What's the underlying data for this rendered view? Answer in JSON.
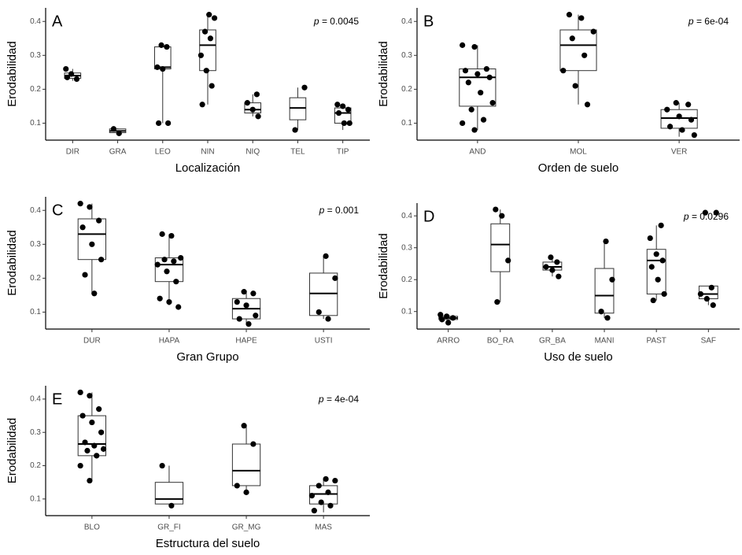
{
  "chart_data": [
    {
      "type": "box",
      "label": "A",
      "y_label": "Erodabilidad",
      "x_label": "Localización",
      "p_symbol": "p",
      "p_text": "= 0.0045",
      "categories": [
        "DIR",
        "GRA",
        "LEO",
        "NIN",
        "NIQ",
        "TEL",
        "TIP"
      ],
      "boxes": [
        {
          "min": 0.225,
          "q1": 0.232,
          "median": 0.24,
          "q3": 0.248,
          "max": 0.26
        },
        {
          "min": 0.07,
          "q1": 0.072,
          "median": 0.077,
          "q3": 0.083,
          "max": 0.085
        },
        {
          "min": 0.1,
          "q1": 0.26,
          "median": 0.265,
          "q3": 0.325,
          "max": 0.33
        },
        {
          "min": 0.155,
          "q1": 0.255,
          "median": 0.33,
          "q3": 0.375,
          "max": 0.42
        },
        {
          "min": 0.12,
          "q1": 0.13,
          "median": 0.14,
          "q3": 0.16,
          "max": 0.185
        },
        {
          "min": 0.08,
          "q1": 0.11,
          "median": 0.145,
          "q3": 0.175,
          "max": 0.205
        },
        {
          "min": 0.08,
          "q1": 0.1,
          "median": 0.13,
          "q3": 0.145,
          "max": 0.155
        }
      ],
      "points": [
        [
          0.26,
          0.245,
          0.23,
          0.235
        ],
        [
          0.083,
          0.07
        ],
        [
          0.33,
          0.325,
          0.265,
          0.26,
          0.1,
          0.1
        ],
        [
          0.42,
          0.41,
          0.37,
          0.35,
          0.3,
          0.255,
          0.21,
          0.155
        ],
        [
          0.185,
          0.16,
          0.14,
          0.12
        ],
        [
          0.205,
          0.08
        ],
        [
          0.155,
          0.15,
          0.14,
          0.13,
          0.1,
          0.1
        ]
      ],
      "ylim": [
        0.05,
        0.44
      ],
      "yticks": [
        0.1,
        0.2,
        0.3,
        0.4
      ]
    },
    {
      "type": "box",
      "label": "B",
      "y_label": "Erodabilidad",
      "x_label": "Orden de suelo",
      "p_symbol": "p",
      "p_text": "= 6e-04",
      "categories": [
        "AND",
        "MOL",
        "VER"
      ],
      "boxes": [
        {
          "min": 0.08,
          "q1": 0.15,
          "median": 0.235,
          "q3": 0.26,
          "max": 0.33
        },
        {
          "min": 0.155,
          "q1": 0.255,
          "median": 0.33,
          "q3": 0.375,
          "max": 0.42
        },
        {
          "min": 0.06,
          "q1": 0.085,
          "median": 0.115,
          "q3": 0.14,
          "max": 0.16
        }
      ],
      "points": [
        [
          0.33,
          0.325,
          0.26,
          0.255,
          0.245,
          0.235,
          0.22,
          0.19,
          0.16,
          0.14,
          0.11,
          0.1,
          0.08
        ],
        [
          0.42,
          0.41,
          0.37,
          0.35,
          0.3,
          0.255,
          0.21,
          0.155
        ],
        [
          0.16,
          0.155,
          0.14,
          0.12,
          0.11,
          0.09,
          0.08,
          0.065
        ]
      ],
      "ylim": [
        0.05,
        0.44
      ],
      "yticks": [
        0.1,
        0.2,
        0.3,
        0.4
      ]
    },
    {
      "type": "box",
      "label": "C",
      "y_label": "Erodabilidad",
      "x_label": "Gran Grupo",
      "p_symbol": "p",
      "p_text": "= 0.001",
      "categories": [
        "DUR",
        "HAPA",
        "HAPE",
        "USTI"
      ],
      "boxes": [
        {
          "min": 0.155,
          "q1": 0.255,
          "median": 0.33,
          "q3": 0.375,
          "max": 0.42
        },
        {
          "min": 0.12,
          "q1": 0.19,
          "median": 0.24,
          "q3": 0.26,
          "max": 0.33
        },
        {
          "min": 0.065,
          "q1": 0.08,
          "median": 0.11,
          "q3": 0.14,
          "max": 0.16
        },
        {
          "min": 0.08,
          "q1": 0.09,
          "median": 0.155,
          "q3": 0.215,
          "max": 0.265
        }
      ],
      "points": [
        [
          0.42,
          0.41,
          0.37,
          0.35,
          0.3,
          0.255,
          0.21,
          0.155
        ],
        [
          0.33,
          0.325,
          0.26,
          0.255,
          0.25,
          0.24,
          0.22,
          0.19,
          0.14,
          0.13,
          0.115
        ],
        [
          0.16,
          0.155,
          0.13,
          0.12,
          0.09,
          0.08,
          0.065
        ],
        [
          0.265,
          0.2,
          0.1,
          0.08
        ]
      ],
      "ylim": [
        0.05,
        0.44
      ],
      "yticks": [
        0.1,
        0.2,
        0.3,
        0.4
      ]
    },
    {
      "type": "box",
      "label": "D",
      "y_label": "Erodabilidad",
      "x_label": "Uso de suelo",
      "p_symbol": "p",
      "p_text": "= 0.0296",
      "categories": [
        "ARRO",
        "BO_RA",
        "GR_BA",
        "MANI",
        "PAST",
        "SAF"
      ],
      "boxes": [
        {
          "min": 0.065,
          "q1": 0.075,
          "median": 0.08,
          "q3": 0.085,
          "max": 0.09
        },
        {
          "min": 0.13,
          "q1": 0.225,
          "median": 0.31,
          "q3": 0.375,
          "max": 0.42
        },
        {
          "min": 0.21,
          "q1": 0.23,
          "median": 0.24,
          "q3": 0.255,
          "max": 0.27
        },
        {
          "min": 0.08,
          "q1": 0.095,
          "median": 0.15,
          "q3": 0.235,
          "max": 0.32
        },
        {
          "min": 0.135,
          "q1": 0.155,
          "median": 0.26,
          "q3": 0.295,
          "max": 0.37
        },
        {
          "min": 0.12,
          "q1": 0.14,
          "median": 0.155,
          "q3": 0.18,
          "max": 0.18
        }
      ],
      "points": [
        [
          0.09,
          0.085,
          0.08,
          0.075,
          0.065
        ],
        [
          0.42,
          0.4,
          0.26,
          0.13
        ],
        [
          0.27,
          0.255,
          0.24,
          0.23,
          0.21
        ],
        [
          0.32,
          0.2,
          0.1,
          0.08
        ],
        [
          0.37,
          0.33,
          0.28,
          0.26,
          0.24,
          0.2,
          0.155,
          0.135
        ],
        [
          0.41,
          0.41,
          0.175,
          0.155,
          0.14,
          0.12
        ]
      ],
      "ylim": [
        0.045,
        0.44
      ],
      "yticks": [
        0.1,
        0.2,
        0.3,
        0.4
      ]
    },
    {
      "type": "box",
      "label": "E",
      "y_label": "Erodabilidad",
      "x_label": "Estructura del suelo",
      "p_symbol": "p",
      "p_text": "= 4e-04",
      "categories": [
        "BLO",
        "GR_FI",
        "GR_MG",
        "MAS"
      ],
      "boxes": [
        {
          "min": 0.155,
          "q1": 0.23,
          "median": 0.265,
          "q3": 0.35,
          "max": 0.42
        },
        {
          "min": 0.08,
          "q1": 0.085,
          "median": 0.1,
          "q3": 0.15,
          "max": 0.2
        },
        {
          "min": 0.12,
          "q1": 0.14,
          "median": 0.185,
          "q3": 0.265,
          "max": 0.32
        },
        {
          "min": 0.06,
          "q1": 0.085,
          "median": 0.115,
          "q3": 0.14,
          "max": 0.16
        }
      ],
      "points": [
        [
          0.42,
          0.41,
          0.37,
          0.35,
          0.33,
          0.3,
          0.27,
          0.26,
          0.25,
          0.245,
          0.23,
          0.2,
          0.155
        ],
        [
          0.2,
          0.08
        ],
        [
          0.32,
          0.265,
          0.14,
          0.12
        ],
        [
          0.16,
          0.155,
          0.14,
          0.12,
          0.11,
          0.09,
          0.08,
          0.065
        ]
      ],
      "ylim": [
        0.05,
        0.44
      ],
      "yticks": [
        0.1,
        0.2,
        0.3,
        0.4
      ]
    }
  ]
}
